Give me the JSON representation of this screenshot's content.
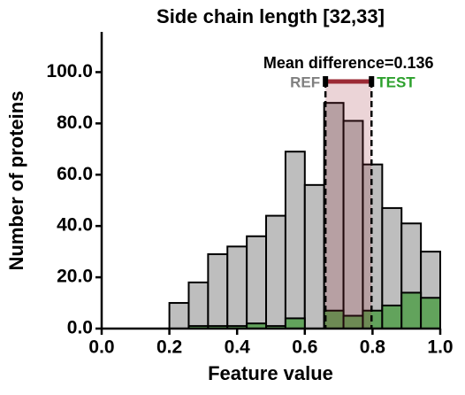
{
  "chart_data": {
    "type": "histogram",
    "title": "Side chain length [32,33]",
    "xlabel": "Feature value",
    "ylabel": "Number of proteins",
    "bins": [
      0.2,
      0.2571,
      0.3143,
      0.3714,
      0.4286,
      0.4857,
      0.5429,
      0.6,
      0.6571,
      0.7143,
      0.7714,
      0.8286,
      0.8857,
      0.9429,
      1.0
    ],
    "series": [
      {
        "name": "REF",
        "color": "#bebebe",
        "label_color": "#7f7f7f",
        "values": [
          10,
          18,
          29,
          32,
          36,
          44,
          69,
          56,
          88,
          81,
          64,
          47,
          41,
          30
        ]
      },
      {
        "name": "TEST",
        "color": "#62a35c",
        "label_color": "#2ca02c",
        "values": [
          0,
          1,
          1,
          1,
          2,
          1,
          4,
          0,
          7,
          5,
          7,
          9,
          14,
          12
        ]
      }
    ],
    "xlim": [
      0,
      1
    ],
    "ylim": [
      0,
      115
    ],
    "xticks": [
      {
        "value": 0,
        "label": "0.0"
      },
      0.2,
      0.4,
      0.6,
      0.8,
      {
        "value": 1,
        "label": "1.0"
      }
    ],
    "yticks": [
      {
        "value": 0,
        "label": "0.0"
      },
      {
        "value": 20,
        "label": "20.0"
      },
      {
        "value": 40,
        "label": "40.0"
      },
      {
        "value": 60,
        "label": "60.0"
      },
      {
        "value": 80,
        "label": "80.0"
      },
      {
        "value": 100,
        "label": "100.0"
      }
    ],
    "means": [
      0.661,
      0.797
    ],
    "annotation": "Mean difference=0.136",
    "mean_color": "#9b2a35"
  }
}
